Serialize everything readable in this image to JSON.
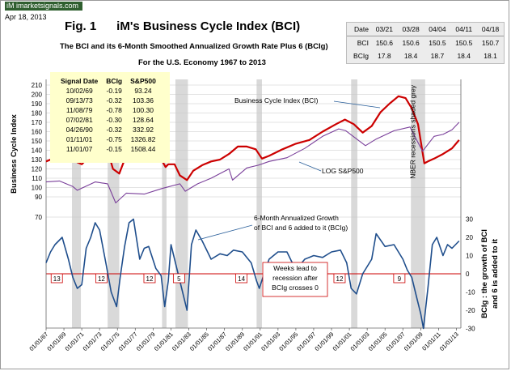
{
  "header": {
    "logo_text": "iM imarketsignals.com",
    "date": "Apr 18, 2013",
    "fig_title": "Fig. 1      iM's Business Cycle Index (BCI)",
    "subtitle": "The BCI and its 6-Month Smoothed Annualized Growth Rate Plus 6 (BCIg)",
    "subtitle2": "For the U.S. Economy 1967  to 2013"
  },
  "latest_table": {
    "corner": "Date",
    "dates": [
      "03/21",
      "03/28",
      "04/04",
      "04/11",
      "04/18"
    ],
    "rows": [
      {
        "label": "BCI",
        "values": [
          "150.6",
          "150.6",
          "150.5",
          "150.5",
          "150.7"
        ]
      },
      {
        "label": "BCIg",
        "values": [
          "17.8",
          "18.4",
          "18.7",
          "18.4",
          "18.1"
        ]
      }
    ]
  },
  "signal_table": {
    "headers": [
      "Signal Date",
      "BCIg",
      "S&P500"
    ],
    "rows": [
      [
        "10/02/69",
        "-0.19",
        "93.24"
      ],
      [
        "09/13/73",
        "-0.32",
        "103.36"
      ],
      [
        "11/08/79",
        "-0.78",
        "100.30"
      ],
      [
        "07/02/81",
        "-0.30",
        "128.64"
      ],
      [
        "04/26/90",
        "-0.32",
        "332.92"
      ],
      [
        "01/11/01",
        "-0.75",
        "1326.82"
      ],
      [
        "11/01/07",
        "-0.15",
        "1508.44"
      ]
    ]
  },
  "chart_data": {
    "type": "line",
    "x_ticks": [
      "01/01/67",
      "01/01/69",
      "01/01/71",
      "01/01/73",
      "01/01/75",
      "01/01/77",
      "01/01/79",
      "01/01/81",
      "01/01/83",
      "01/01/85",
      "01/01/87",
      "01/01/89",
      "01/01/91",
      "01/01/93",
      "01/01/95",
      "01/01/97",
      "01/01/99",
      "01/01/01",
      "01/01/03",
      "01/01/05",
      "01/01/07",
      "01/01/09",
      "01/01/11",
      "01/01/13"
    ],
    "xlim": [
      1967.0,
      2013.5
    ],
    "left_axis": {
      "label": "Business  Cycle  Index",
      "ticks": [
        70,
        90,
        100,
        110,
        120,
        130,
        140,
        150,
        160,
        170,
        180,
        190,
        200,
        210
      ]
    },
    "right_axis": {
      "label": "BCIg : the growth of BCI and 6 is added to it",
      "ticks": [
        -30,
        -20,
        -10,
        0,
        10,
        20,
        30
      ],
      "ylim": [
        -30,
        30
      ]
    },
    "recessions": [
      [
        1969.9,
        1970.9
      ],
      [
        1973.9,
        1975.2
      ],
      [
        1980.0,
        1980.5
      ],
      [
        1981.5,
        1982.9
      ],
      [
        1990.6,
        1991.2
      ],
      [
        2001.2,
        2001.9
      ],
      [
        2007.9,
        2009.5
      ]
    ],
    "recession_label": "NBER recessions shaded grey",
    "series": [
      {
        "name": "Business Cycle Index (BCI)",
        "color": "#cc0000",
        "x": [
          1967.0,
          1968.0,
          1969.0,
          1969.8,
          1970.5,
          1971.0,
          1972.0,
          1973.0,
          1973.9,
          1974.5,
          1975.2,
          1976.0,
          1976.5,
          1977.5,
          1978.5,
          1979.5,
          1980.4,
          1980.7,
          1981.4,
          1982.0,
          1982.8,
          1983.5,
          1984.5,
          1985.5,
          1986.5,
          1987.5,
          1988.5,
          1989.5,
          1990.5,
          1991.2,
          1992.0,
          1993.5,
          1995.0,
          1996.5,
          1998.0,
          1999.5,
          2000.5,
          2001.5,
          2002.5,
          2003.5,
          2004.5,
          2005.5,
          2006.5,
          2007.3,
          2008.0,
          2008.7,
          2009.4,
          2009.8,
          2010.5,
          2011.5,
          2012.5,
          2013.3
        ],
        "values": [
          128,
          132,
          138,
          140,
          127,
          125,
          135,
          143,
          140,
          120,
          115,
          135,
          139,
          134,
          138,
          137,
          122,
          125,
          125,
          113,
          108,
          118,
          124,
          128,
          130,
          136,
          144,
          144,
          141,
          131,
          134,
          141,
          147,
          151,
          160,
          168,
          173,
          168,
          159,
          166,
          181,
          190,
          198,
          196,
          185,
          168,
          126,
          128,
          131,
          136,
          142,
          151
        ]
      },
      {
        "name": "LOG S&P500",
        "color": "#7a3f9a",
        "x": [
          1967.0,
          1968.5,
          1970.0,
          1970.5,
          1972.5,
          1973.9,
          1974.8,
          1976.0,
          1978.0,
          1980.0,
          1982.0,
          1982.6,
          1984.0,
          1985.5,
          1987.5,
          1987.9,
          1989.5,
          1990.8,
          1992.0,
          1994.0,
          1996.0,
          1998.0,
          1999.8,
          2000.6,
          2002.8,
          2004.0,
          2006.0,
          2007.8,
          2009.2,
          2010.5,
          2011.5,
          2012.5,
          2013.3
        ],
        "values": [
          106,
          107,
          101,
          97,
          106,
          104,
          84,
          94,
          93,
          99,
          104,
          96,
          104,
          110,
          120,
          108,
          121,
          124,
          128,
          132,
          142,
          155,
          163,
          161,
          145,
          152,
          161,
          165,
          139,
          155,
          157,
          162,
          170
        ]
      },
      {
        "name": "6-Month Annualized Growth of BCI and 6 added to it (BCIg)",
        "color": "#1f4e8c",
        "x": [
          1967.0,
          1967.5,
          1968.0,
          1968.8,
          1969.5,
          1970.0,
          1970.5,
          1971.0,
          1971.5,
          1972.0,
          1972.5,
          1973.0,
          1973.7,
          1974.3,
          1974.9,
          1975.3,
          1975.8,
          1976.3,
          1976.8,
          1977.5,
          1978.0,
          1978.5,
          1979.3,
          1979.9,
          1980.3,
          1980.7,
          1981.0,
          1981.6,
          1982.2,
          1982.8,
          1983.3,
          1983.8,
          1984.5,
          1985.5,
          1986.5,
          1987.3,
          1988.0,
          1989.0,
          1990.0,
          1990.6,
          1990.9,
          1991.3,
          1992.0,
          1993.0,
          1994.0,
          1995.0,
          1996.0,
          1997.0,
          1998.0,
          1999.0,
          2000.0,
          2000.7,
          2001.2,
          2001.8,
          2002.5,
          2003.5,
          2004.0,
          2005.0,
          2006.0,
          2007.0,
          2007.5,
          2008.0,
          2008.5,
          2009.0,
          2009.3,
          2009.8,
          2010.3,
          2010.8,
          2011.5,
          2012.0,
          2012.5,
          2013.3
        ],
        "values": [
          6,
          12,
          16,
          20,
          8,
          -2,
          -8,
          -6,
          14,
          20,
          28,
          24,
          6,
          -10,
          -18,
          -2,
          15,
          28,
          30,
          8,
          14,
          15,
          3,
          -1,
          -18,
          -4,
          16,
          4,
          -8,
          -20,
          16,
          24,
          18,
          8,
          11,
          10,
          13,
          12,
          6,
          -4,
          -8,
          -2,
          8,
          12,
          12,
          2,
          8,
          10,
          9,
          12,
          13,
          6,
          -8,
          -11,
          0,
          8,
          22,
          15,
          16,
          8,
          2,
          -2,
          -12,
          -22,
          -30,
          -8,
          16,
          20,
          10,
          16,
          14,
          18
        ]
      }
    ],
    "annotations": {
      "weeks_lead": [
        "13",
        "12",
        "12",
        "5",
        "14",
        "12",
        "9"
      ],
      "bci_label": "Business Cycle Index (BCI)",
      "sp_label": "LOG S&P500",
      "bcig_label_line1": "6-Month Annualized Growth",
      "bcig_label_line2": "of BCI and 6 added to it (BCIg)",
      "weeks_note_line1": "Weeks lead  to",
      "weeks_note_line2": "recession after",
      "weeks_note_line3": "BCIg crosses 0"
    }
  }
}
